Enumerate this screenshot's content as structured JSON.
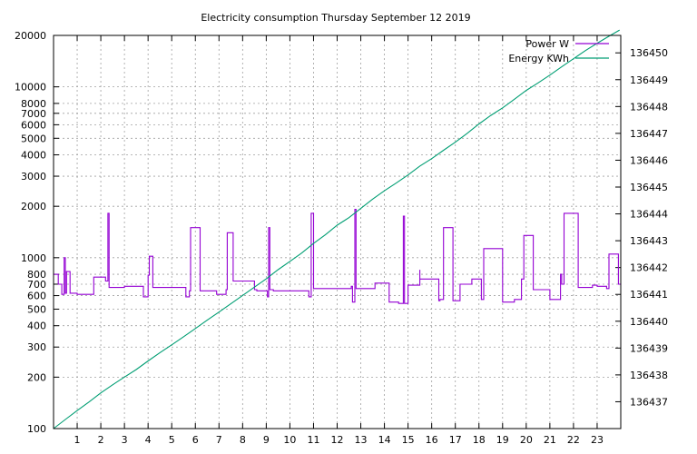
{
  "chart_data": {
    "type": "line",
    "title": "Electricity consumption Thursday September 12 2019",
    "x_ticks": [
      1,
      2,
      3,
      4,
      5,
      6,
      7,
      8,
      9,
      10,
      11,
      12,
      13,
      14,
      15,
      16,
      17,
      18,
      19,
      20,
      21,
      22,
      23
    ],
    "xlim": [
      0,
      24
    ],
    "y_left": {
      "scale": "log",
      "ylim": [
        100,
        20000
      ],
      "ticks": [
        100,
        200,
        300,
        400,
        500,
        600,
        700,
        800,
        1000,
        2000,
        3000,
        4000,
        5000,
        6000,
        7000,
        8000,
        10000,
        20000
      ],
      "tick_labels": [
        "100",
        "200",
        "300",
        "400",
        "500",
        "600",
        "700",
        "800",
        "1000",
        "2000",
        "3000",
        "4000",
        "5000",
        "6000",
        "7000",
        "8000",
        "10000",
        "20000"
      ]
    },
    "y_right": {
      "scale": "linear",
      "ylim": [
        136436.0,
        136450.65
      ],
      "ticks": [
        136437,
        136438,
        136439,
        136440,
        136441,
        136442,
        136443,
        136444,
        136445,
        136446,
        136447,
        136448,
        136449,
        136450
      ],
      "tick_labels": [
        "136437",
        "136438",
        "136439",
        "136440",
        "136441",
        "136442",
        "136443",
        "136444",
        "136445",
        "136446",
        "136447",
        "136448",
        "136449",
        "136450"
      ]
    },
    "grid": true,
    "legend_position": "top-right",
    "series": [
      {
        "name": "Power W",
        "axis": "left",
        "color": "#9400d3",
        "step": true,
        "x": [
          0,
          0.2,
          0.35,
          0.45,
          0.5,
          0.55,
          0.7,
          1.0,
          1.7,
          1.7,
          2.2,
          2.3,
          2.35,
          3.0,
          3.8,
          3.9,
          4.0,
          4.05,
          4.2,
          5.3,
          5.6,
          5.75,
          5.8,
          6.2,
          6.9,
          7.0,
          7.3,
          7.35,
          7.6,
          8.5,
          8.6,
          9.05,
          9.1,
          9.15,
          9.3,
          10.0,
          10.8,
          10.9,
          11.0,
          11.8,
          12.6,
          12.65,
          12.75,
          12.8,
          13.3,
          13.6,
          14.2,
          14.5,
          14.6,
          14.8,
          14.85,
          15.0,
          15.5,
          15.5,
          16.3,
          16.35,
          16.5,
          16.9,
          17.2,
          17.7,
          18.0,
          18.1,
          18.2,
          19.0,
          19.5,
          19.8,
          19.9,
          20.3,
          20.6,
          21.0,
          21.3,
          21.45,
          21.5,
          21.6,
          22.2,
          22.8,
          23.0,
          23.3,
          23.4,
          23.5,
          23.9
        ],
        "values": [
          800,
          700,
          610,
          1000,
          620,
          830,
          620,
          610,
          610,
          770,
          730,
          1820,
          670,
          680,
          590,
          590,
          790,
          1020,
          670,
          670,
          590,
          640,
          1500,
          640,
          610,
          610,
          650,
          1400,
          730,
          650,
          640,
          590,
          1500,
          650,
          640,
          640,
          590,
          1820,
          660,
          660,
          680,
          550,
          1920,
          660,
          660,
          710,
          550,
          550,
          540,
          1750,
          540,
          690,
          850,
          750,
          560,
          570,
          1500,
          560,
          700,
          750,
          750,
          570,
          1130,
          550,
          570,
          750,
          1350,
          650,
          650,
          570,
          570,
          800,
          700,
          1820,
          670,
          690,
          680,
          680,
          660,
          1050,
          700
        ]
      },
      {
        "name": "Energy KWh",
        "axis": "right",
        "color": "#009e73",
        "step": false,
        "x": [
          0,
          0.5,
          1.0,
          1.5,
          2.0,
          2.5,
          3.0,
          3.5,
          4.0,
          4.5,
          5.0,
          5.5,
          6.0,
          6.5,
          7.0,
          7.5,
          8.0,
          8.5,
          9.0,
          9.5,
          10.0,
          10.5,
          11.0,
          11.5,
          12.0,
          12.5,
          13.0,
          13.5,
          14.0,
          14.5,
          15.0,
          15.5,
          16.0,
          16.5,
          17.0,
          17.5,
          18.0,
          18.5,
          19.0,
          19.5,
          20.0,
          20.5,
          21.0,
          21.5,
          22.0,
          22.5,
          23.0,
          23.5,
          23.95
        ],
        "values": [
          136436.0,
          136436.34,
          136436.67,
          136436.99,
          136437.33,
          136437.63,
          136437.92,
          136438.2,
          136438.52,
          136438.83,
          136439.12,
          136439.42,
          136439.73,
          136440.04,
          136440.34,
          136440.65,
          136440.96,
          136441.27,
          136441.58,
          136441.92,
          136442.23,
          136442.54,
          136442.9,
          136443.22,
          136443.58,
          136443.86,
          136444.2,
          136444.55,
          136444.86,
          136445.15,
          136445.45,
          136445.78,
          136446.06,
          136446.37,
          136446.67,
          136447.0,
          136447.35,
          136447.67,
          136447.95,
          136448.27,
          136448.6,
          136448.88,
          136449.17,
          136449.48,
          136449.78,
          136450.08,
          136450.36,
          136450.62,
          136450.85
        ]
      }
    ]
  }
}
